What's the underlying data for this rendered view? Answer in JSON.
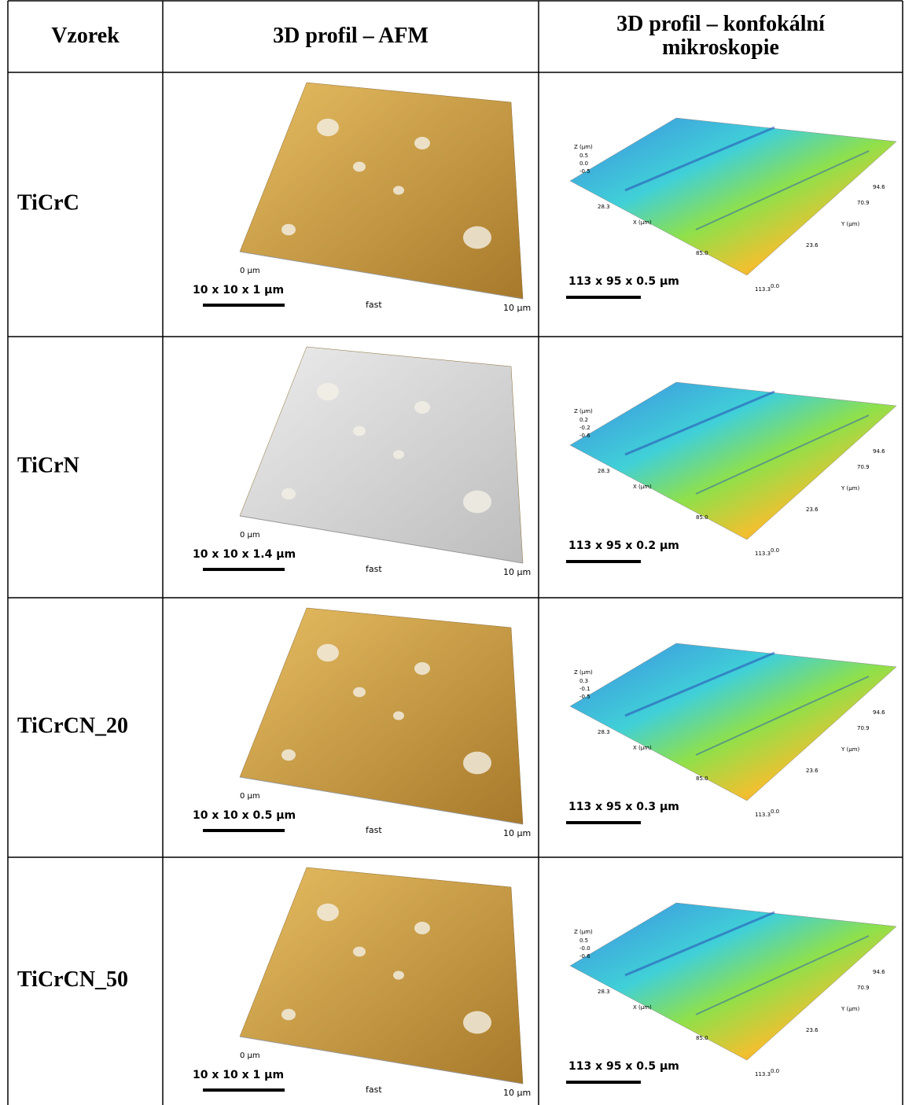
{
  "header": {
    "sample": "Vzorek",
    "afm": "3D profil – AFM",
    "confocal": "3D profil – konfokální mikroskopie"
  },
  "rows": [
    {
      "sample": "TiCrC",
      "afm": {
        "scale": "10 x 10 x 1 µm",
        "zero": "0 µm",
        "axis": "fast",
        "end": "10 µm"
      },
      "confocal": {
        "scale": "113 x 95 x 0.5 µm",
        "z_label": "Z (µm)",
        "z_ticks": [
          "0.5",
          "0.0",
          "-0.5"
        ],
        "x_label": "X (µm)",
        "x_ticks": [
          "28.3",
          "85.0",
          "113.3"
        ],
        "y_label": "Y (µm)",
        "y_ticks": [
          "94.6",
          "70.9",
          "23.6",
          "0.0"
        ]
      }
    },
    {
      "sample": "TiCrN",
      "afm": {
        "scale": "10 x 10 x 1.4 µm",
        "zero": "0 µm",
        "axis": "fast",
        "end": "10 µm"
      },
      "confocal": {
        "scale": "113 x 95 x 0.2 µm",
        "z_label": "Z (µm)",
        "z_ticks": [
          "0.2",
          "-0.2",
          "-0.6"
        ],
        "x_label": "X (µm)",
        "x_ticks": [
          "28.3",
          "85.0",
          "113.3"
        ],
        "y_label": "Y (µm)",
        "y_ticks": [
          "94.6",
          "70.9",
          "23.6",
          "0.0"
        ]
      }
    },
    {
      "sample": "TiCrCN_20",
      "afm": {
        "scale": "10 x 10 x 0.5 µm",
        "zero": "0 µm",
        "axis": "fast",
        "end": "10 µm"
      },
      "confocal": {
        "scale": "113 x 95 x 0.3 µm",
        "z_label": "Z (µm)",
        "z_ticks": [
          "0.3",
          "-0.1",
          "-0.5"
        ],
        "x_label": "X (µm)",
        "x_ticks": [
          "28.3",
          "85.0",
          "113.3"
        ],
        "y_label": "Y (µm)",
        "y_ticks": [
          "94.6",
          "70.9",
          "23.6",
          "0.0"
        ]
      }
    },
    {
      "sample": "TiCrCN_50",
      "afm": {
        "scale": "10 x 10 x 1 µm",
        "zero": "0 µm",
        "axis": "fast",
        "end": "10 µm"
      },
      "confocal": {
        "scale": "113 x 95 x 0.5 µm",
        "z_label": "Z (µm)",
        "z_ticks": [
          "0.5",
          "-0.0",
          "-0.6"
        ],
        "x_label": "X (µm)",
        "x_ticks": [
          "28.3",
          "85.0",
          "113.3"
        ],
        "y_label": "Y (µm)",
        "y_ticks": [
          "94.6",
          "70.9",
          "23.6",
          "0.0"
        ]
      }
    }
  ]
}
